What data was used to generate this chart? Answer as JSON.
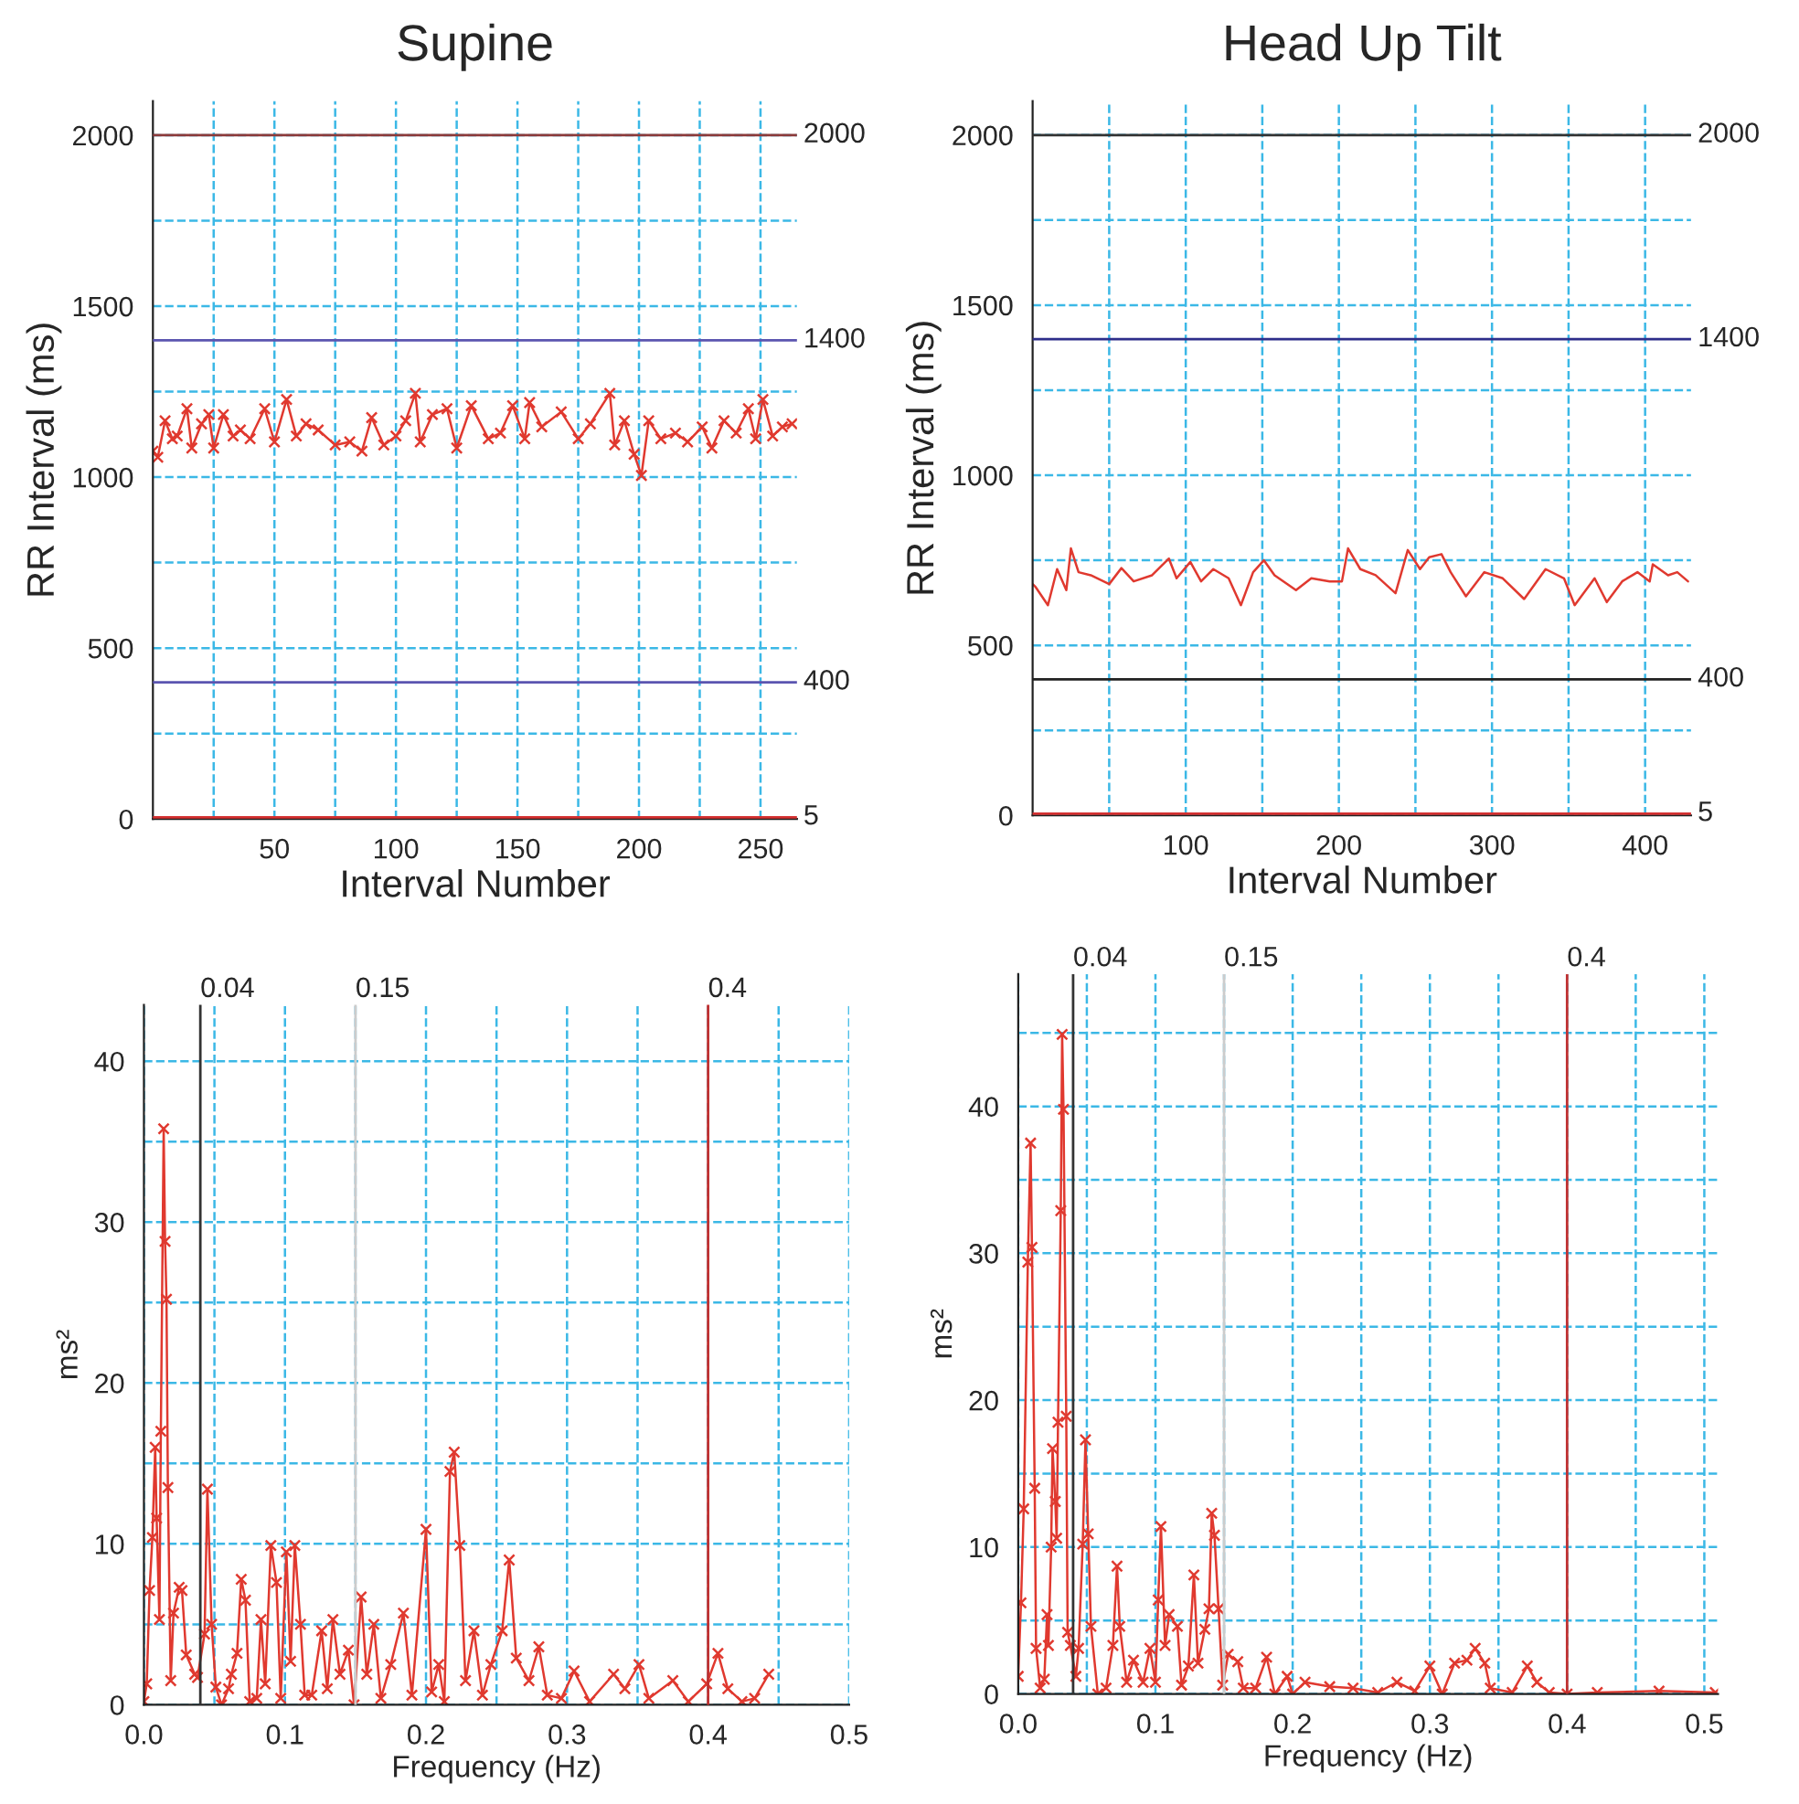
{
  "chart_data": [
    {
      "type": "line",
      "title": "Supine",
      "xlabel": "Interval Number",
      "ylabel": "RR Interval (ms)",
      "marker": "cross",
      "line_style": "solid",
      "grid": true,
      "xlim": [
        0,
        265
      ],
      "xticks": [
        {
          "value": 25,
          "label": null
        },
        50,
        {
          "value": 75,
          "label": null
        },
        100,
        {
          "value": 125,
          "label": null
        },
        150,
        {
          "value": 175,
          "label": null
        },
        200,
        {
          "value": 225,
          "label": null
        },
        250
      ],
      "ylim": [
        0,
        2100
      ],
      "yticks": [
        0,
        {
          "value": 250,
          "label": null
        },
        500,
        {
          "value": 750,
          "label": null
        },
        1000,
        {
          "value": 1250,
          "label": null
        },
        1500,
        {
          "value": 1750,
          "label": null
        },
        2000
      ],
      "ref_lines": [
        {
          "axis": "y",
          "value": 2000,
          "label": "2000",
          "color": "#8b3a3a"
        },
        {
          "axis": "y",
          "value": 1400,
          "label": "1400",
          "color": "#5b55b0"
        },
        {
          "axis": "y",
          "value": 400,
          "label": "400",
          "color": "#5b55b0"
        },
        {
          "axis": "y",
          "value": 5,
          "label": "5",
          "color": "#d43030"
        }
      ],
      "series": [
        {
          "color": "#e0392f",
          "x": [
            0,
            2,
            5,
            8,
            10,
            14,
            16,
            20,
            23,
            25,
            29,
            33,
            36,
            40,
            46,
            50,
            55,
            59,
            63,
            68,
            75,
            81,
            86,
            90,
            95,
            100,
            104,
            108,
            110,
            115,
            121,
            125,
            131,
            138,
            143,
            148,
            153,
            155,
            160,
            168,
            175,
            180,
            188,
            190,
            194,
            198,
            201,
            204,
            209,
            215,
            220,
            226,
            230,
            235,
            240,
            245,
            248,
            251,
            255,
            259,
            263
          ],
          "values": [
            1076,
            1058,
            1165,
            1112,
            1120,
            1200,
            1085,
            1156,
            1183,
            1085,
            1183,
            1120,
            1138,
            1112,
            1200,
            1103,
            1227,
            1120,
            1156,
            1138,
            1094,
            1103,
            1076,
            1174,
            1094,
            1120,
            1165,
            1245,
            1103,
            1183,
            1200,
            1085,
            1209,
            1112,
            1129,
            1209,
            1112,
            1218,
            1147,
            1191,
            1112,
            1156,
            1245,
            1094,
            1165,
            1067,
            1005,
            1165,
            1112,
            1129,
            1103,
            1147,
            1085,
            1165,
            1129,
            1200,
            1112,
            1227,
            1120,
            1147,
            1156
          ]
        }
      ]
    },
    {
      "type": "line",
      "title": "Head Up Tilt",
      "xlabel": "Interval Number",
      "ylabel": "RR Interval (ms)",
      "marker": "none",
      "line_style": "solid",
      "grid": true,
      "xlim": [
        0,
        430
      ],
      "xticks": [
        {
          "value": 50,
          "label": null
        },
        100,
        {
          "value": 150,
          "label": null
        },
        200,
        {
          "value": 250,
          "label": null
        },
        300,
        {
          "value": 350,
          "label": null
        },
        400
      ],
      "ylim": [
        0,
        2100
      ],
      "yticks": [
        0,
        {
          "value": 250,
          "label": null
        },
        500,
        {
          "value": 750,
          "label": null
        },
        1000,
        {
          "value": 1250,
          "label": null
        },
        1500,
        {
          "value": 1750,
          "label": null
        },
        2000
      ],
      "ref_lines": [
        {
          "axis": "y",
          "value": 2000,
          "label": "2000",
          "color": "#333333"
        },
        {
          "axis": "y",
          "value": 1400,
          "label": "1400",
          "color": "#2e2e8a"
        },
        {
          "axis": "y",
          "value": 400,
          "label": "400",
          "color": "#222222"
        },
        {
          "axis": "y",
          "value": 5,
          "label": "5",
          "color": "#d43030"
        }
      ],
      "series": [
        {
          "color": "#e0392f",
          "x": [
            0,
            2,
            10,
            16,
            22,
            25,
            30,
            38,
            50,
            58,
            66,
            78,
            89,
            94,
            103,
            110,
            118,
            128,
            136,
            144,
            151,
            158,
            172,
            182,
            194,
            202,
            206,
            214,
            224,
            237,
            245,
            253,
            259,
            267,
            273,
            283,
            295,
            307,
            321,
            335,
            347,
            354,
            367,
            375,
            385,
            395,
            403,
            405,
            415,
            421,
            428
          ],
          "values": [
            680,
            671,
            618,
            724,
            662,
            785,
            715,
            706,
            680,
            727,
            688,
            706,
            755,
            697,
            745,
            688,
            724,
            697,
            618,
            715,
            750,
            706,
            662,
            697,
            688,
            688,
            785,
            724,
            706,
            653,
            780,
            724,
            759,
            768,
            715,
            644,
            715,
            697,
            636,
            724,
            697,
            618,
            697,
            627,
            688,
            715,
            688,
            738,
            706,
            715,
            688
          ]
        }
      ]
    },
    {
      "type": "line",
      "xlabel": "Frequency (Hz)",
      "ylabel": "ms²",
      "marker": "cross",
      "line_style": "solid",
      "grid": true,
      "xlim": [
        0,
        0.5
      ],
      "xticks": [
        {
          "value": 0,
          "label": "0.0"
        },
        {
          "value": 0.05,
          "label": null
        },
        0.1,
        {
          "value": 0.15,
          "label": null
        },
        0.2,
        {
          "value": 0.25,
          "label": null
        },
        0.3,
        {
          "value": 0.35,
          "label": null
        },
        0.4,
        {
          "value": 0.45,
          "label": null
        },
        0.5
      ],
      "ylim": [
        0,
        43.5
      ],
      "yticks": [
        0,
        {
          "value": 5,
          "label": null
        },
        10,
        {
          "value": 15,
          "label": null
        },
        20,
        {
          "value": 25,
          "label": null
        },
        30,
        {
          "value": 35,
          "label": null
        },
        40
      ],
      "ref_lines": [
        {
          "axis": "x",
          "value": 0.04,
          "label": "0.04",
          "color": "#333333"
        },
        {
          "axis": "x",
          "value": 0.15,
          "label": "0.15",
          "color": "#cccccc"
        },
        {
          "axis": "x",
          "value": 0.4,
          "label": "0.4",
          "color": "#c03030"
        }
      ],
      "series": [
        {
          "color": "#e0392f",
          "x": [
            0,
            0.002,
            0.004,
            0.006,
            0.008,
            0.009,
            0.011,
            0.012,
            0.014,
            0.015,
            0.016,
            0.017,
            0.019,
            0.021,
            0.025,
            0.027,
            0.03,
            0.036,
            0.038,
            0.043,
            0.045,
            0.048,
            0.051,
            0.055,
            0.06,
            0.062,
            0.066,
            0.069,
            0.072,
            0.075,
            0.08,
            0.083,
            0.086,
            0.09,
            0.094,
            0.097,
            0.101,
            0.104,
            0.107,
            0.111,
            0.114,
            0.119,
            0.126,
            0.13,
            0.134,
            0.139,
            0.145,
            0.149,
            0.154,
            0.158,
            0.163,
            0.168,
            0.175,
            0.184,
            0.19,
            0.2,
            0.204,
            0.209,
            0.213,
            0.217,
            0.22,
            0.224,
            0.228,
            0.234,
            0.24,
            0.246,
            0.254,
            0.259,
            0.264,
            0.273,
            0.28,
            0.286,
            0.296,
            0.305,
            0.316,
            0.333,
            0.341,
            0.351,
            0.358,
            0.375,
            0.386,
            0.399,
            0.407,
            0.414,
            0.424,
            0.433,
            0.443
          ],
          "values": [
            0.2,
            1.3,
            7.1,
            10.4,
            16,
            11.6,
            5.3,
            17,
            35.8,
            28.8,
            25.2,
            13.5,
            1.5,
            5.7,
            7.3,
            7.1,
            3.1,
            1.9,
            1.7,
            4.4,
            13.4,
            5,
            1.1,
            0,
            1,
            1.9,
            3.2,
            7.8,
            6.5,
            0.2,
            0.4,
            5.3,
            1.3,
            9.9,
            7.6,
            0.4,
            9.5,
            2.7,
            9.9,
            5,
            0.6,
            0.6,
            4.6,
            1,
            5.3,
            1.9,
            3.4,
            0,
            6.7,
            1.9,
            5,
            0.4,
            2.5,
            5.7,
            0.6,
            10.9,
            0.8,
            2.5,
            0.2,
            14.5,
            15.7,
            9.9,
            1.5,
            4.6,
            0.6,
            2.5,
            4.6,
            9,
            2.9,
            1.5,
            3.6,
            0.6,
            0.4,
            2.1,
            0.2,
            1.9,
            1,
            2.5,
            0.4,
            1.5,
            0.2,
            1.3,
            3.2,
            1,
            0.2,
            0.4,
            1.9
          ]
        }
      ]
    },
    {
      "type": "line",
      "xlabel": "Frequency (Hz)",
      "ylabel": "ms²",
      "marker": "cross",
      "line_style": "solid",
      "grid": true,
      "xlim": [
        0,
        0.51
      ],
      "xticks": [
        {
          "value": 0,
          "label": "0.0"
        },
        {
          "value": 0.05,
          "label": null
        },
        0.1,
        {
          "value": 0.15,
          "label": null
        },
        0.2,
        {
          "value": 0.25,
          "label": null
        },
        0.3,
        {
          "value": 0.35,
          "label": null
        },
        0.4,
        {
          "value": 0.45,
          "label": null
        },
        0.5
      ],
      "ylim": [
        0,
        49
      ],
      "yticks": [
        0,
        {
          "value": 5,
          "label": null
        },
        10,
        {
          "value": 15,
          "label": null
        },
        20,
        {
          "value": 25,
          "label": null
        },
        30,
        {
          "value": 35,
          "label": null
        },
        40,
        {
          "value": 45,
          "label": null
        }
      ],
      "ref_lines": [
        {
          "axis": "x",
          "value": 0.04,
          "label": "0.04",
          "color": "#333333"
        },
        {
          "axis": "x",
          "value": 0.15,
          "label": "0.15",
          "color": "#cccccc"
        },
        {
          "axis": "x",
          "value": 0.4,
          "label": "0.4",
          "color": "#c03030"
        }
      ],
      "series": [
        {
          "color": "#e0392f",
          "x": [
            0,
            0.002,
            0.004,
            0.007,
            0.009,
            0.01,
            0.012,
            0.013,
            0.016,
            0.019,
            0.021,
            0.022,
            0.024,
            0.025,
            0.027,
            0.028,
            0.029,
            0.031,
            0.032,
            0.033,
            0.035,
            0.036,
            0.038,
            0.042,
            0.044,
            0.047,
            0.049,
            0.051,
            0.053,
            0.058,
            0.064,
            0.069,
            0.072,
            0.074,
            0.079,
            0.084,
            0.091,
            0.096,
            0.1,
            0.102,
            0.104,
            0.107,
            0.11,
            0.116,
            0.119,
            0.124,
            0.128,
            0.131,
            0.136,
            0.139,
            0.141,
            0.143,
            0.146,
            0.149,
            0.153,
            0.16,
            0.164,
            0.173,
            0.181,
            0.187,
            0.196,
            0.2,
            0.209,
            0.227,
            0.244,
            0.262,
            0.276,
            0.289,
            0.3,
            0.309,
            0.318,
            0.327,
            0.333,
            0.34,
            0.344,
            0.36,
            0.371,
            0.378,
            0.387,
            0.4,
            0.422,
            0.467,
            0.508
          ],
          "values": [
            1.2,
            6.2,
            12.6,
            29.4,
            37.5,
            30.4,
            14,
            3.1,
            0.4,
            1,
            5.4,
            3.3,
            10,
            16.7,
            13.1,
            10.6,
            18.5,
            32.9,
            44.9,
            39.8,
            18.9,
            4.2,
            3.3,
            1.2,
            3.1,
            10.2,
            17.3,
            10.9,
            4.6,
            0,
            0.4,
            3.3,
            8.7,
            4.6,
            0.8,
            2.3,
            0.8,
            3.1,
            0.8,
            6.4,
            11.4,
            3.3,
            5.4,
            4.6,
            0.6,
            1.9,
            8.1,
            2.1,
            4.4,
            5.8,
            12.3,
            10.8,
            5.8,
            0.6,
            2.7,
            2.2,
            0.4,
            0.4,
            2.5,
            0,
            1.2,
            0,
            0.8,
            0.5,
            0.4,
            0.1,
            0.8,
            0.2,
            1.9,
            0,
            2.1,
            2.3,
            3.1,
            2.1,
            0.4,
            0.1,
            1.9,
            0.8,
            0.1,
            0,
            0.1,
            0.2,
            0.1
          ]
        }
      ]
    }
  ]
}
